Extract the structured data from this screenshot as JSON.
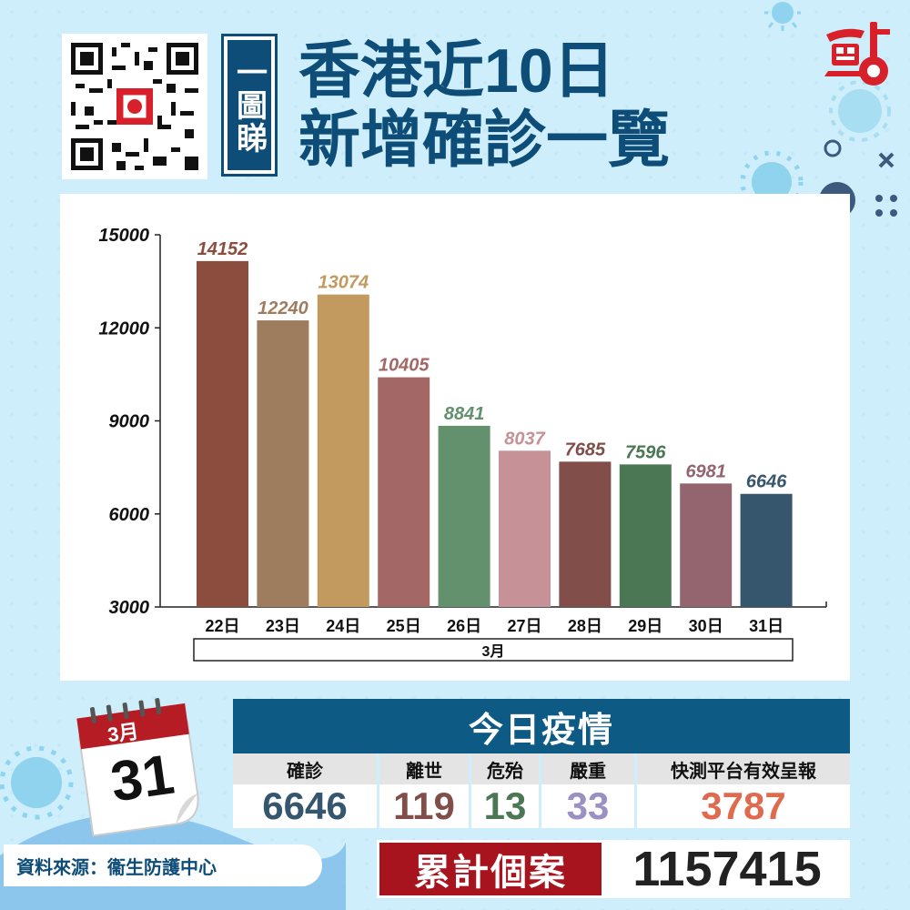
{
  "title": {
    "vertical_label": "一圖睇",
    "line1": "香港近10日",
    "line2": "新增確診一覽"
  },
  "logo": {
    "name": "logo-icon",
    "color": "#d8202a"
  },
  "qr": {
    "name": "qr-code-icon"
  },
  "chart_data": {
    "type": "bar",
    "categories": [
      "22日",
      "23日",
      "24日",
      "25日",
      "26日",
      "27日",
      "28日",
      "29日",
      "30日",
      "31日"
    ],
    "values": [
      14152,
      12240,
      13074,
      10405,
      8841,
      8037,
      7685,
      7596,
      6981,
      6646
    ],
    "bar_colors": [
      "#8d4d3e",
      "#9e7c5e",
      "#c29a5f",
      "#a36866",
      "#63906d",
      "#c69197",
      "#824e4a",
      "#4b7755",
      "#94656f",
      "#36566d"
    ],
    "ylim": [
      3000,
      15000
    ],
    "yticks": [
      3000,
      6000,
      9000,
      12000,
      15000
    ],
    "group_label": "3月",
    "grid": false
  },
  "calendar": {
    "month": "3月",
    "day": "31"
  },
  "today": {
    "header": "今日疫情",
    "columns": [
      {
        "label": "確診",
        "value": "6646",
        "color": "#36566d"
      },
      {
        "label": "離世",
        "value": "119",
        "color": "#824e4a"
      },
      {
        "label": "危殆",
        "value": "13",
        "color": "#4b7755"
      },
      {
        "label": "嚴重",
        "value": "33",
        "color": "#9a90c4"
      },
      {
        "label": "快測平台有效呈報",
        "value": "3787",
        "color": "#e06a4e"
      }
    ]
  },
  "source": "資料來源：衞生防護中心",
  "cumulative": {
    "label": "累計個案",
    "value": "1157415"
  }
}
